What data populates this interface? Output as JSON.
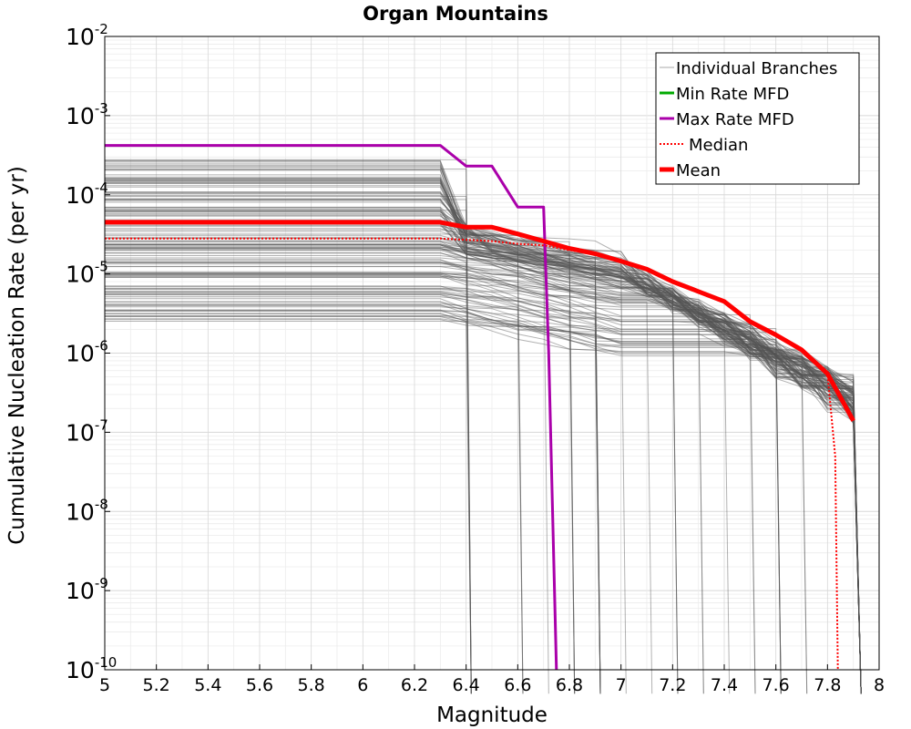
{
  "chart_data": {
    "type": "line",
    "title": "Organ Mountains",
    "xlabel": "Magnitude",
    "ylabel": "Cumulative Nucleation Rate (per yr)",
    "xlim": [
      5,
      8
    ],
    "ylim": [
      1e-10,
      0.01
    ],
    "yscale": "log",
    "grid": true,
    "x_ticks": [
      "5",
      "5.2",
      "5.4",
      "5.6",
      "5.8",
      "6",
      "6.2",
      "6.4",
      "6.6",
      "6.8",
      "7",
      "7.2",
      "7.4",
      "7.6",
      "7.8",
      "8"
    ],
    "y_ticks": [
      {
        "base": "10",
        "exp": "-10"
      },
      {
        "base": "10",
        "exp": "-9"
      },
      {
        "base": "10",
        "exp": "-8"
      },
      {
        "base": "10",
        "exp": "-7"
      },
      {
        "base": "10",
        "exp": "-6"
      },
      {
        "base": "10",
        "exp": "-5"
      },
      {
        "base": "10",
        "exp": "-4"
      },
      {
        "base": "10",
        "exp": "-3"
      },
      {
        "base": "10",
        "exp": "-2"
      }
    ],
    "legend_position": "top-right",
    "series": [
      {
        "name": "Individual Branches",
        "color": "#555555",
        "style": "thin",
        "note_count": 200
      },
      {
        "name": "Min Rate MFD",
        "color": "#00aa00",
        "style": "solid",
        "x": [],
        "y": []
      },
      {
        "name": "Max Rate MFD",
        "color": "#aa00aa",
        "style": "solid",
        "x": [
          5.0,
          6.3,
          6.4,
          6.5,
          6.6,
          6.7,
          6.72,
          6.75
        ],
        "y": [
          0.00042,
          0.00042,
          0.00023,
          0.00023,
          7e-05,
          7e-05,
          1e-06,
          1e-10
        ]
      },
      {
        "name": "Median",
        "color": "#ff0000",
        "style": "dotted",
        "x": [
          5.0,
          6.3,
          6.4,
          6.5,
          6.6,
          6.7,
          6.8,
          6.9,
          7.0,
          7.1,
          7.2,
          7.3,
          7.4,
          7.5,
          7.6,
          7.7,
          7.8,
          7.83,
          7.84
        ],
        "y": [
          2.8e-05,
          2.8e-05,
          2.7e-05,
          2.6e-05,
          2.4e-05,
          2.3e-05,
          2e-05,
          1.8e-05,
          1.4e-05,
          1.15e-05,
          8e-06,
          6e-06,
          4.5e-06,
          2.5e-06,
          1.7e-06,
          1.1e-06,
          5.5e-07,
          5e-08,
          1e-10
        ]
      },
      {
        "name": "Mean",
        "color": "#ff0000",
        "style": "thick",
        "x": [
          5.0,
          6.3,
          6.4,
          6.5,
          6.6,
          6.7,
          6.8,
          6.9,
          7.0,
          7.1,
          7.2,
          7.3,
          7.4,
          7.5,
          7.6,
          7.7,
          7.8,
          7.9
        ],
        "y": [
          4.5e-05,
          4.5e-05,
          3.9e-05,
          3.9e-05,
          3.2e-05,
          2.6e-05,
          2.1e-05,
          1.8e-05,
          1.45e-05,
          1.15e-05,
          8e-06,
          6e-06,
          4.5e-06,
          2.5e-06,
          1.7e-06,
          1.1e-06,
          5.5e-07,
          1.4e-07
        ]
      }
    ]
  }
}
